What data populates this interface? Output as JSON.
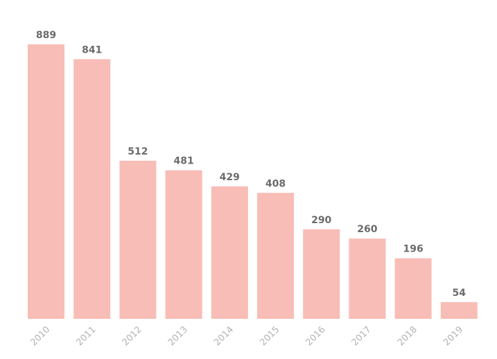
{
  "chart_data": {
    "type": "bar",
    "title": "",
    "xlabel": "",
    "ylabel": "",
    "categories": [
      "2010",
      "2011",
      "2012",
      "2013",
      "2014",
      "2015",
      "2016",
      "2017",
      "2018",
      "2019"
    ],
    "values": [
      889,
      841,
      512,
      481,
      429,
      408,
      290,
      260,
      196,
      54
    ],
    "ylim": [
      0,
      889
    ],
    "grid": false,
    "legend": "none",
    "data_labels": true,
    "colors": {
      "bar": "#f8bdb6",
      "value_label": "#6b6b6b",
      "tick_label": "#b3b3b3",
      "background": "#ffffff"
    }
  }
}
